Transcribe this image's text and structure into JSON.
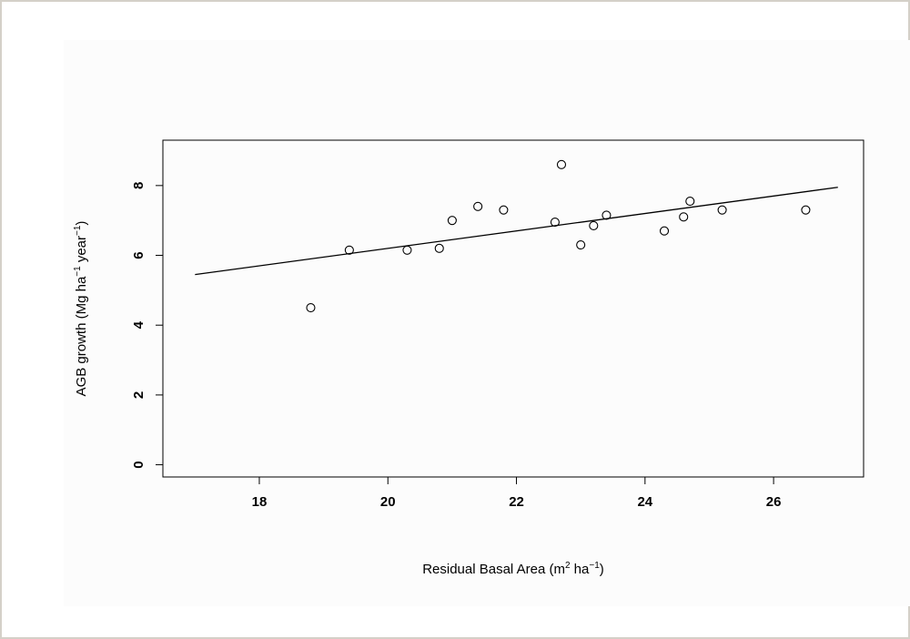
{
  "chart_data": {
    "type": "scatter",
    "title": "",
    "xlabel": {
      "text": "Residual Basal Area (m",
      "sup1": "2",
      "mid": " ha",
      "sup2": "−1",
      "end": ")"
    },
    "ylabel": {
      "text": "AGB growth (Mg  ha",
      "sup1": "−1",
      "mid": "  year",
      "sup2": "−1",
      "end": ")"
    },
    "xlim": [
      16.5,
      27.4
    ],
    "ylim": [
      -0.35,
      9.3
    ],
    "x_ticks": [
      18,
      20,
      22,
      24,
      26
    ],
    "y_ticks": [
      0,
      2,
      4,
      6,
      8
    ],
    "x_tick_labels": [
      "18",
      "20",
      "22",
      "24",
      "26"
    ],
    "y_tick_labels": [
      "0",
      "2",
      "4",
      "6",
      "8"
    ],
    "grid": false,
    "points": [
      {
        "x": 18.8,
        "y": 4.5
      },
      {
        "x": 19.4,
        "y": 6.15
      },
      {
        "x": 20.3,
        "y": 6.15
      },
      {
        "x": 20.8,
        "y": 6.2
      },
      {
        "x": 21.0,
        "y": 7.0
      },
      {
        "x": 21.4,
        "y": 7.4
      },
      {
        "x": 21.8,
        "y": 7.3
      },
      {
        "x": 22.6,
        "y": 6.95
      },
      {
        "x": 22.7,
        "y": 8.6
      },
      {
        "x": 23.0,
        "y": 6.3
      },
      {
        "x": 23.2,
        "y": 6.85
      },
      {
        "x": 23.4,
        "y": 7.15
      },
      {
        "x": 24.3,
        "y": 6.7
      },
      {
        "x": 24.6,
        "y": 7.1
      },
      {
        "x": 24.7,
        "y": 7.55
      },
      {
        "x": 25.2,
        "y": 7.3
      },
      {
        "x": 26.5,
        "y": 7.3
      }
    ],
    "fit_line": {
      "x": [
        17.0,
        27.0
      ],
      "y": [
        5.45,
        7.95
      ]
    },
    "colors": {
      "points": "#000000",
      "line": "#000000",
      "frame": "#000000"
    }
  }
}
